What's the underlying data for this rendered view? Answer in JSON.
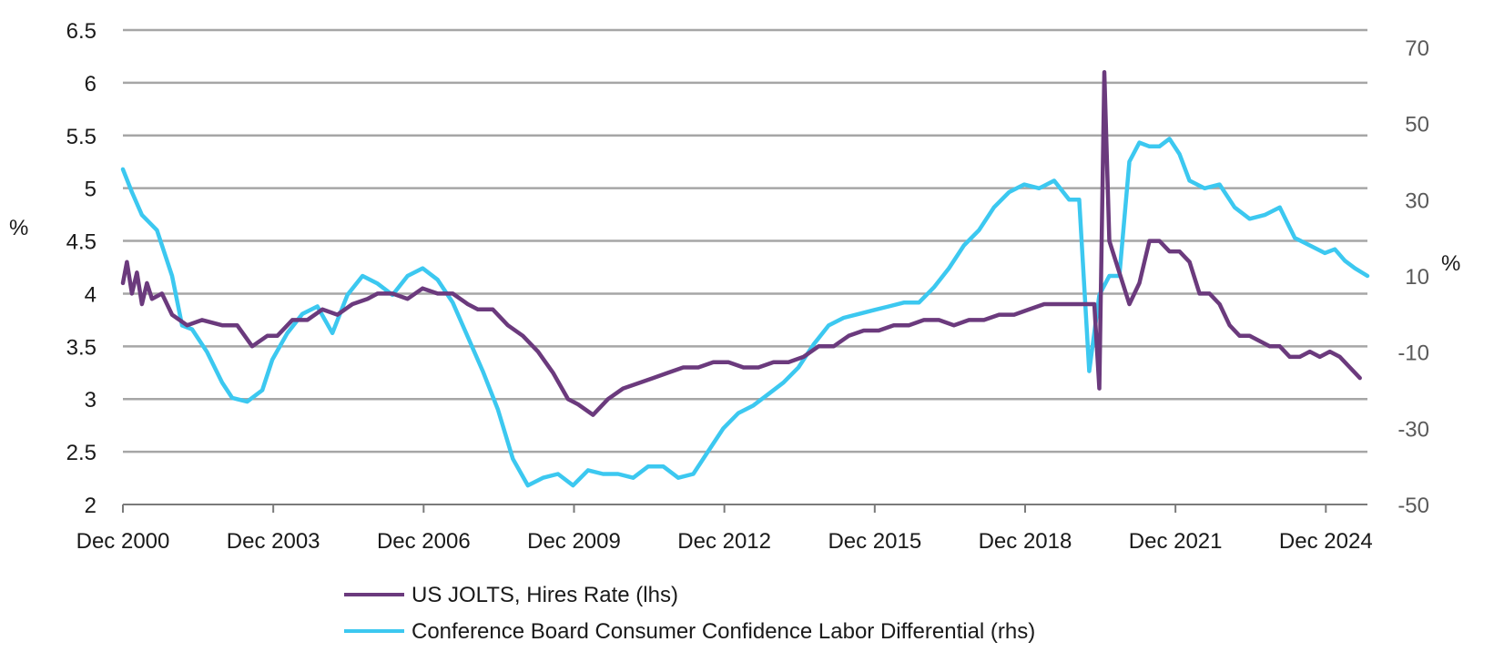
{
  "chart_data": {
    "type": "line",
    "title": "",
    "y_left": {
      "label": "%",
      "ticks": [
        "6.5",
        "6",
        "5.5",
        "5",
        "4.5",
        "4",
        "3.5",
        "3",
        "2.5",
        "2"
      ],
      "lim": [
        2,
        6.5
      ]
    },
    "y_right": {
      "label": "%",
      "ticks": [
        "70",
        "50",
        "30",
        "10",
        "-10",
        "-30",
        "-50"
      ],
      "lim": [
        -50,
        70
      ]
    },
    "x": {
      "lim": [
        2000.92,
        2025.75
      ],
      "ticks": [
        {
          "label": "Dec 2000",
          "value": 2000.92
        },
        {
          "label": "Dec 2003",
          "value": 2003.92
        },
        {
          "label": "Dec 2006",
          "value": 2006.92
        },
        {
          "label": "Dec 2009",
          "value": 2009.92
        },
        {
          "label": "Dec 2012",
          "value": 2012.92
        },
        {
          "label": "Dec 2015",
          "value": 2015.92
        },
        {
          "label": "Dec 2018",
          "value": 2018.92
        },
        {
          "label": "Dec 2021",
          "value": 2021.92
        },
        {
          "label": "Dec 2024",
          "value": 2024.92
        }
      ]
    },
    "grid": true,
    "legend_position": "bottom-center",
    "series": [
      {
        "name": "US JOLTS, Hires Rate (lhs)",
        "axis": "left",
        "color": "#6b3a7d",
        "x": [
          2000.92,
          2001.0,
          2001.1,
          2001.2,
          2001.3,
          2001.4,
          2001.5,
          2001.7,
          2001.9,
          2002.2,
          2002.5,
          2002.9,
          2003.2,
          2003.5,
          2003.8,
          2004.0,
          2004.3,
          2004.6,
          2004.9,
          2005.2,
          2005.5,
          2005.8,
          2006.0,
          2006.3,
          2006.6,
          2006.9,
          2007.2,
          2007.5,
          2007.8,
          2008.0,
          2008.3,
          2008.6,
          2008.9,
          2009.2,
          2009.5,
          2009.8,
          2010.0,
          2010.3,
          2010.6,
          2010.9,
          2011.2,
          2011.5,
          2011.8,
          2012.1,
          2012.4,
          2012.7,
          2013.0,
          2013.3,
          2013.6,
          2013.9,
          2014.2,
          2014.5,
          2014.8,
          2015.1,
          2015.4,
          2015.7,
          2016.0,
          2016.3,
          2016.6,
          2016.9,
          2017.2,
          2017.5,
          2017.8,
          2018.1,
          2018.4,
          2018.7,
          2019.0,
          2019.3,
          2019.6,
          2019.9,
          2020.1,
          2020.2,
          2020.3,
          2020.4,
          2020.5,
          2020.6,
          2020.8,
          2021.0,
          2021.2,
          2021.4,
          2021.6,
          2021.8,
          2022.0,
          2022.2,
          2022.4,
          2022.6,
          2022.8,
          2023.0,
          2023.2,
          2023.4,
          2023.6,
          2023.8,
          2024.0,
          2024.2,
          2024.4,
          2024.6,
          2024.8,
          2025.0,
          2025.2,
          2025.4,
          2025.6
        ],
        "values": [
          4.1,
          4.3,
          4.0,
          4.2,
          3.9,
          4.1,
          3.95,
          4.0,
          3.8,
          3.7,
          3.75,
          3.7,
          3.7,
          3.5,
          3.6,
          3.6,
          3.75,
          3.75,
          3.85,
          3.8,
          3.9,
          3.95,
          4.0,
          4.0,
          3.95,
          4.05,
          4.0,
          4.0,
          3.9,
          3.85,
          3.85,
          3.7,
          3.6,
          3.45,
          3.25,
          3.0,
          2.95,
          2.85,
          3.0,
          3.1,
          3.15,
          3.2,
          3.25,
          3.3,
          3.3,
          3.35,
          3.35,
          3.3,
          3.3,
          3.35,
          3.35,
          3.4,
          3.5,
          3.5,
          3.6,
          3.65,
          3.65,
          3.7,
          3.7,
          3.75,
          3.75,
          3.7,
          3.75,
          3.75,
          3.8,
          3.8,
          3.85,
          3.9,
          3.9,
          3.9,
          3.9,
          3.9,
          3.9,
          3.1,
          6.1,
          4.5,
          4.2,
          3.9,
          4.1,
          4.5,
          4.5,
          4.4,
          4.4,
          4.3,
          4.0,
          4.0,
          3.9,
          3.7,
          3.6,
          3.6,
          3.55,
          3.5,
          3.5,
          3.4,
          3.4,
          3.45,
          3.4,
          3.45,
          3.4,
          3.3,
          3.2
        ]
      },
      {
        "name": "Conference Board Consumer Confidence Labor Differential (rhs)",
        "axis": "right",
        "color": "#3cc8f0",
        "x": [
          2000.92,
          2001.1,
          2001.3,
          2001.6,
          2001.9,
          2002.1,
          2002.3,
          2002.6,
          2002.9,
          2003.1,
          2003.4,
          2003.7,
          2003.9,
          2004.2,
          2004.5,
          2004.8,
          2005.1,
          2005.4,
          2005.7,
          2006.0,
          2006.3,
          2006.6,
          2006.9,
          2007.2,
          2007.5,
          2007.8,
          2008.1,
          2008.4,
          2008.7,
          2009.0,
          2009.3,
          2009.6,
          2009.9,
          2010.2,
          2010.5,
          2010.8,
          2011.1,
          2011.4,
          2011.7,
          2012.0,
          2012.3,
          2012.6,
          2012.9,
          2013.2,
          2013.5,
          2013.8,
          2014.1,
          2014.4,
          2014.7,
          2015.0,
          2015.3,
          2015.6,
          2015.9,
          2016.2,
          2016.5,
          2016.8,
          2017.1,
          2017.4,
          2017.7,
          2018.0,
          2018.3,
          2018.6,
          2018.9,
          2019.2,
          2019.5,
          2019.8,
          2020.0,
          2020.2,
          2020.4,
          2020.6,
          2020.8,
          2021.0,
          2021.2,
          2021.4,
          2021.6,
          2021.8,
          2022.0,
          2022.2,
          2022.5,
          2022.8,
          2023.1,
          2023.4,
          2023.7,
          2024.0,
          2024.3,
          2024.6,
          2024.9,
          2025.1,
          2025.3,
          2025.5,
          2025.75
        ],
        "values": [
          38,
          32,
          26,
          22,
          10,
          -3,
          -4,
          -10,
          -18,
          -22,
          -23,
          -20,
          -12,
          -5,
          0,
          2,
          -5,
          5,
          10,
          8,
          5,
          10,
          12,
          9,
          3,
          -6,
          -15,
          -25,
          -38,
          -45,
          -43,
          -42,
          -45,
          -41,
          -42,
          -42,
          -43,
          -40,
          -40,
          -43,
          -42,
          -36,
          -30,
          -26,
          -24,
          -21,
          -18,
          -14,
          -8,
          -3,
          -1,
          0,
          1,
          2,
          3,
          3,
          7,
          12,
          18,
          22,
          28,
          32,
          34,
          33,
          35,
          30,
          30,
          -15,
          5,
          10,
          10,
          40,
          45,
          44,
          44,
          46,
          42,
          35,
          33,
          34,
          28,
          25,
          26,
          28,
          20,
          18,
          16,
          17,
          14,
          12,
          10
        ]
      }
    ]
  }
}
